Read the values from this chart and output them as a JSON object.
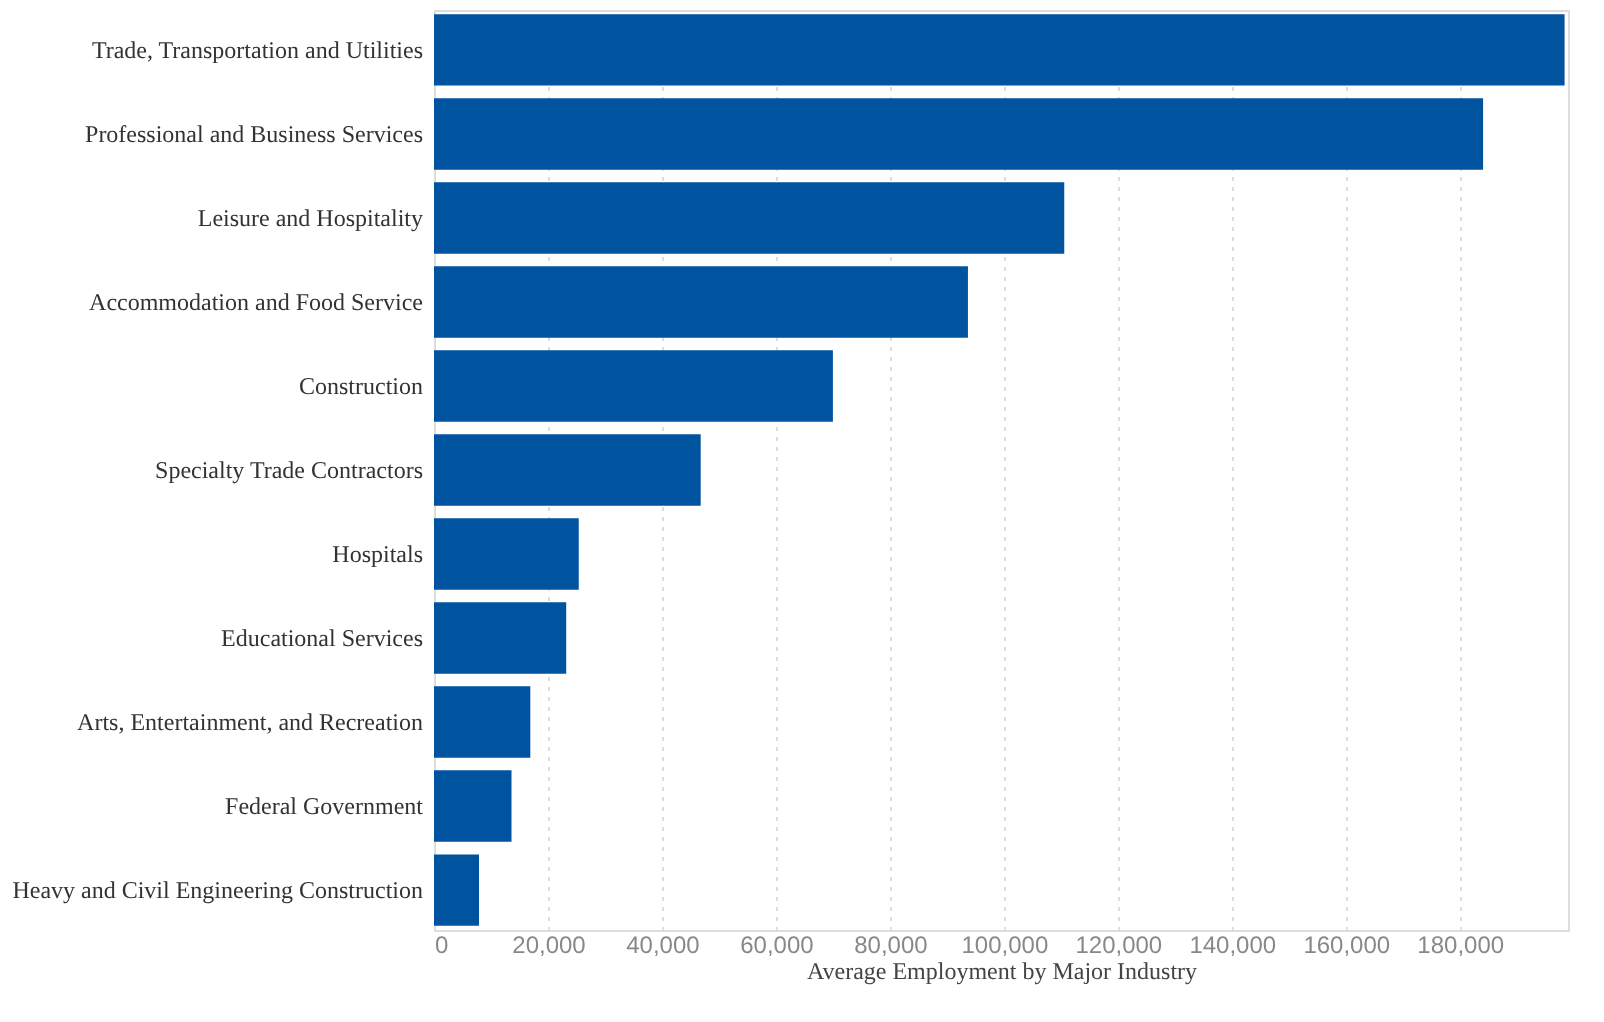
{
  "chart_data": {
    "type": "bar",
    "orientation": "horizontal",
    "xlabel": "Average Employment by Major Industry",
    "categories": [
      "Trade, Transportation and Utilities",
      "Professional and Business Services",
      "Leisure and Hospitality",
      "Accommodation and Food Service",
      "Construction",
      "Specialty Trade Contractors",
      "Hospitals",
      "Educational Services",
      "Arts, Entertainment, and Recreation",
      "Federal Government",
      "Heavy and Civil Engineering Construction"
    ],
    "values": [
      198400,
      184100,
      110600,
      93700,
      70000,
      46800,
      25400,
      23200,
      16900,
      13600,
      7900
    ],
    "color": "#00539f",
    "xlim": [
      0,
      199000
    ],
    "xticks": [
      0,
      {
        "value": 20000,
        "label": "20,000"
      },
      {
        "value": 40000,
        "label": "40,000"
      },
      {
        "value": 60000,
        "label": "60,000"
      },
      {
        "value": 80000,
        "label": "80,000"
      },
      {
        "value": 100000,
        "label": "100,000"
      },
      {
        "value": 120000,
        "label": "120,000"
      },
      {
        "value": 140000,
        "label": "140,000"
      },
      {
        "value": 160000,
        "label": "160,000"
      },
      {
        "value": 180000,
        "label": "180,000"
      }
    ],
    "grid": "x"
  }
}
